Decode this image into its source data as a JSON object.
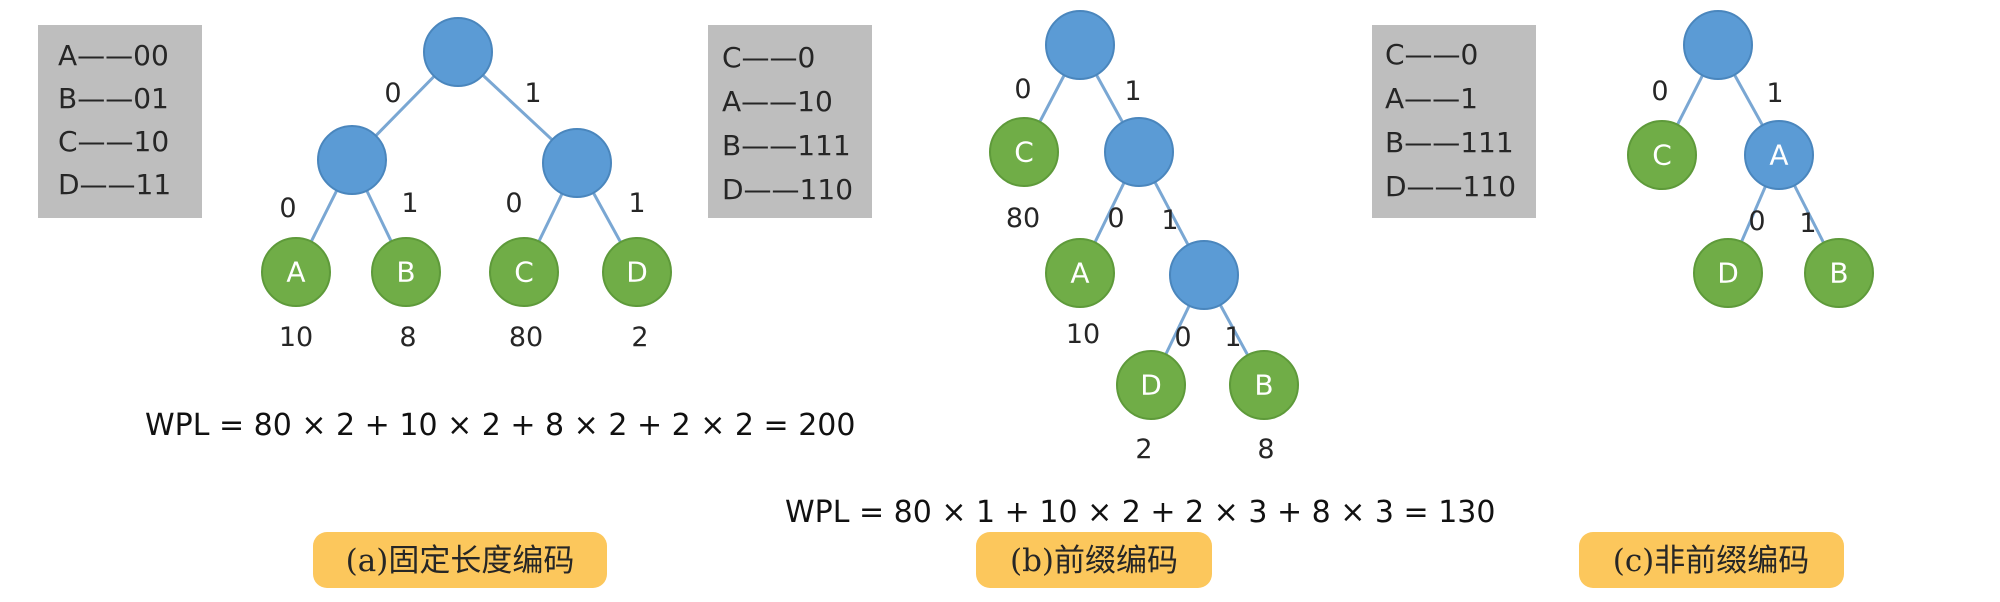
{
  "panel_a": {
    "codes": [
      "A——00",
      "B——01",
      "C——10",
      "D——11"
    ],
    "nodes": {
      "A": "A",
      "B": "B",
      "C": "C",
      "D": "D"
    },
    "bits": {
      "root_l": "0",
      "root_r": "1",
      "l_l": "0",
      "l_r": "1",
      "r_l": "0",
      "r_r": "1"
    },
    "weights": {
      "A": "10",
      "B": "8",
      "C": "80",
      "D": "2"
    },
    "wpl": "WPL = 80 × 2 + 10 × 2 + 8 × 2 + 2 × 2 = 200",
    "caption": "(a)固定长度编码"
  },
  "panel_b": {
    "codes": [
      "C——0",
      "A——10",
      "B——111",
      "D——110"
    ],
    "nodes": {
      "C": "C",
      "A": "A",
      "D": "D",
      "B": "B"
    },
    "bits": {
      "root_l": "0",
      "root_r": "1",
      "n1_l": "0",
      "n1_r": "1",
      "n2_l": "0",
      "n2_r": "1"
    },
    "weights": {
      "C": "80",
      "A": "10",
      "D": "2",
      "B": "8"
    },
    "wpl": "WPL = 80 × 1 + 10 × 2 + 2 × 3 + 8 × 3 = 130",
    "caption": "(b)前缀编码"
  },
  "panel_c": {
    "codes": [
      "C——0",
      "A——1",
      "B——111",
      "D——110"
    ],
    "nodes": {
      "C": "C",
      "A": "A",
      "D": "D",
      "B": "B"
    },
    "bits": {
      "root_l": "0",
      "root_r": "1",
      "a_l": "0",
      "a_r": "1"
    },
    "caption": "(c)非前缀编码"
  },
  "colors": {
    "inner_node": "#5b9bd5",
    "leaf_node": "#70ad47",
    "edge": "#7aa7d3",
    "code_box": "#bebebe",
    "caption_bg": "#fcc75c"
  }
}
